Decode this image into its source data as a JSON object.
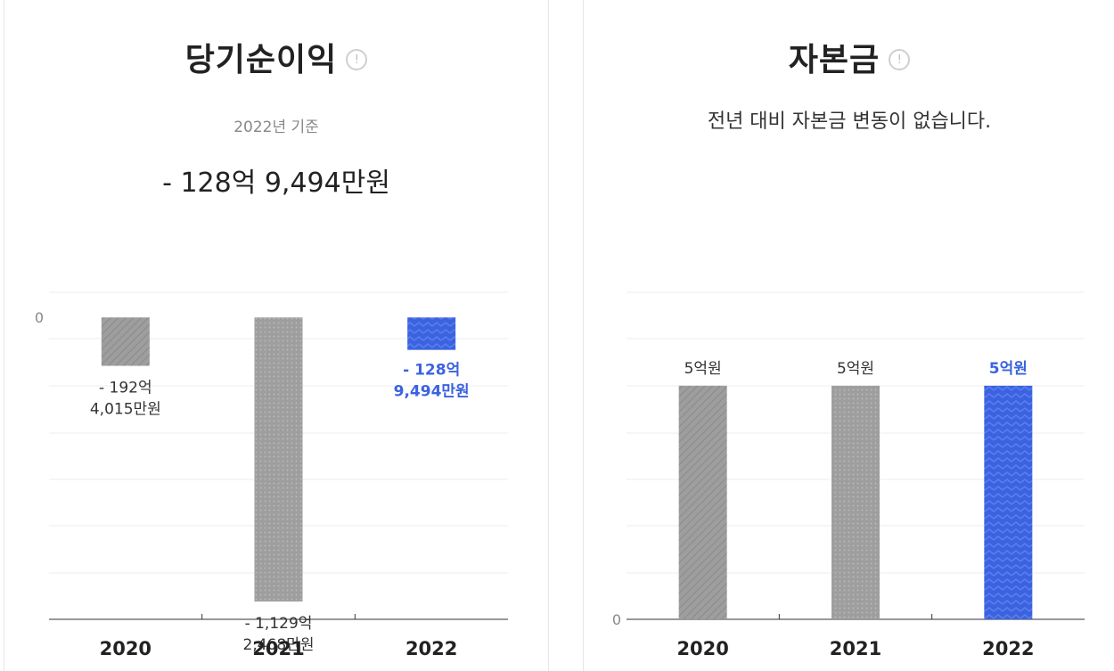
{
  "left": {
    "title": "당기순이익",
    "info_icon": "info-icon",
    "basis": "2022년 기준",
    "headline": "- 128억 9,494만원"
  },
  "right": {
    "title": "자본금",
    "info_icon": "info-icon",
    "note": "전년 대비 자본금 변동이 없습니다."
  },
  "colors": {
    "bar_gray": "#9e9e9e",
    "bar_highlight": "#3b63e0",
    "label_highlight": "#3b63e0"
  },
  "chart_data": [
    {
      "type": "bar",
      "name_printed": "당기순이익",
      "categories": [
        "2020",
        "2021",
        "2022"
      ],
      "values": [
        -19240.15,
        -112924.68,
        -12894.94
      ],
      "unit": "만원",
      "value_labels": [
        [
          "- 192억",
          "4,015만원"
        ],
        [
          "- 1,129억",
          "2,468만원"
        ],
        [
          "- 128억",
          "9,494만원"
        ]
      ],
      "highlight_index": 2,
      "y_tick_labels": [
        "0"
      ],
      "ylim": [
        -120000,
        10000
      ],
      "grid": true
    },
    {
      "type": "bar",
      "name_printed": "자본금",
      "categories": [
        "2020",
        "2021",
        "2022"
      ],
      "values": [
        5,
        5,
        5
      ],
      "unit": "억원",
      "value_labels": [
        [
          "5억원"
        ],
        [
          "5억원"
        ],
        [
          "5억원"
        ]
      ],
      "highlight_index": 2,
      "y_tick_labels": [
        "0"
      ],
      "ylim": [
        0,
        7
      ],
      "grid": true
    }
  ]
}
